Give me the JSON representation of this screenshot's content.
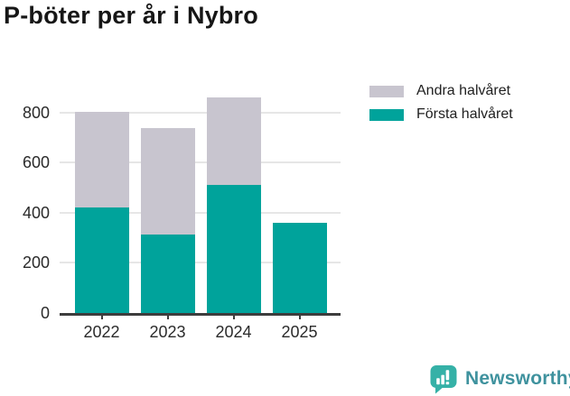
{
  "page": {
    "title": "P-böter per år i Nybro",
    "background": "#ffffff"
  },
  "legend": {
    "position": "top-right",
    "items": [
      {
        "label": "Andra halvåret",
        "color": "#c8c5cf"
      },
      {
        "label": "Första halvåret",
        "color": "#00a39b"
      }
    ]
  },
  "chart_data": {
    "type": "bar",
    "stacked": true,
    "title": "P-böter per år i Nybro",
    "xlabel": "",
    "ylabel": "",
    "categories": [
      "2022",
      "2023",
      "2024",
      "2025"
    ],
    "series": [
      {
        "name": "Första halvåret",
        "color": "#00a39b",
        "values": [
          420,
          315,
          510,
          360
        ]
      },
      {
        "name": "Andra halvåret",
        "color": "#c8c5cf",
        "values": [
          385,
          425,
          350,
          0
        ]
      }
    ],
    "totals": [
      805,
      740,
      860,
      360
    ],
    "yticks": [
      0,
      200,
      400,
      600,
      800
    ],
    "ylim": [
      0,
      890
    ],
    "grid": "horizontal",
    "grid_color": "#e6e6e6",
    "axis_color": "#3d3d3d",
    "tick_label_color": "#2b2b2b",
    "legend_position": "top-right"
  },
  "footer": {
    "brand": "Newsworthy",
    "brand_color": "#3f929e",
    "logo_color": "#35b1a7",
    "logo_glyph": "bar-chart-exclamation-speech-bubble"
  }
}
